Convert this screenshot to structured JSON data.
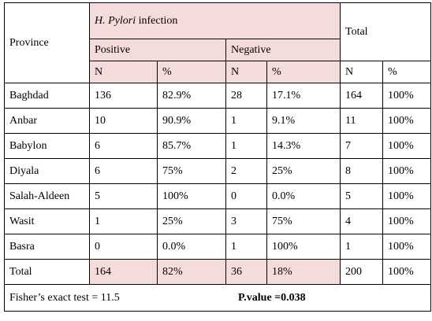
{
  "table": {
    "header": {
      "province": "Province",
      "infection_italic": "H. Pylori",
      "infection_rest": " infection",
      "total": "Total",
      "positive": "Positive",
      "negative": "Negative",
      "sub": [
        "N",
        "%",
        "N",
        "%",
        "N",
        "%"
      ]
    },
    "rows": [
      {
        "province": "Baghdad",
        "pos_n": "136",
        "pos_pct": "82.9%",
        "neg_n": "28",
        "neg_pct": "17.1%",
        "tot_n": "164",
        "tot_pct": "100%"
      },
      {
        "province": "Anbar",
        "pos_n": "10",
        "pos_pct": "90.9%",
        "neg_n": "1",
        "neg_pct": "9.1%",
        "tot_n": "11",
        "tot_pct": "100%"
      },
      {
        "province": "Babylon",
        "pos_n": "6",
        "pos_pct": "85.7%",
        "neg_n": "1",
        "neg_pct": "14.3%",
        "tot_n": "7",
        "tot_pct": "100%"
      },
      {
        "province": "Diyala",
        "pos_n": "6",
        "pos_pct": "75%",
        "neg_n": "2",
        "neg_pct": "25%",
        "tot_n": "8",
        "tot_pct": "100%"
      },
      {
        "province": "Salah-Aldeen",
        "pos_n": "5",
        "pos_pct": "100%",
        "neg_n": "0",
        "neg_pct": "0.0%",
        "tot_n": "5",
        "tot_pct": "100%"
      },
      {
        "province": "Wasit",
        "pos_n": "1",
        "pos_pct": "25%",
        "neg_n": "3",
        "neg_pct": "75%",
        "tot_n": "4",
        "tot_pct": "100%"
      },
      {
        "province": "Basra",
        "pos_n": "0",
        "pos_pct": "0.0%",
        "neg_n": "1",
        "neg_pct": "100%",
        "tot_n": "1",
        "tot_pct": "100%"
      }
    ],
    "total_row": {
      "province": "Total",
      "pos_n": "164",
      "pos_pct": "82%",
      "neg_n": "36",
      "neg_pct": "18%",
      "tot_n": "200",
      "tot_pct": "100%"
    },
    "footer": {
      "test": "Fisher’s exact test = 11.5",
      "pvalue": "P.value =0.038"
    }
  },
  "colors": {
    "header_fill": "#f5dcdc",
    "border": "#000000"
  }
}
